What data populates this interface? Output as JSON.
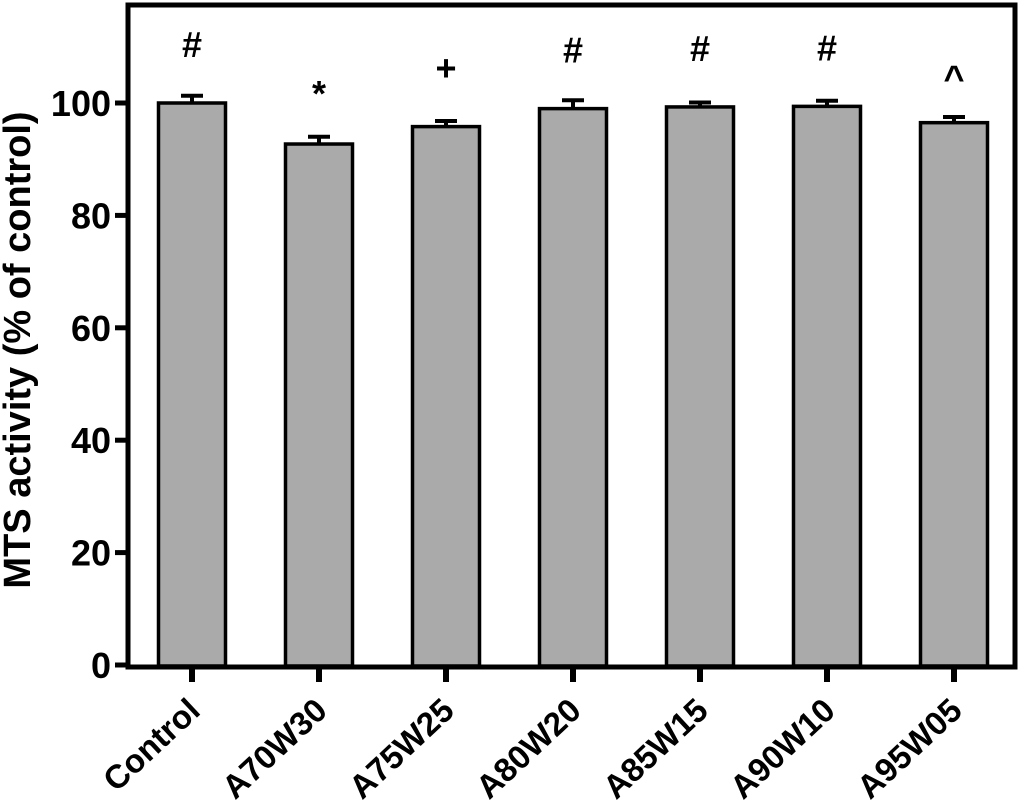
{
  "figure": {
    "background": "#ffffff",
    "bar_fill": "#aaaaaa",
    "bar_stroke": "#000000",
    "axis_color": "#000000"
  },
  "chart_data": {
    "type": "bar",
    "title": "",
    "xlabel": "",
    "ylabel": "MTS activity (% of control)",
    "ylim": [
      0,
      117
    ],
    "yticks": [
      0,
      20,
      40,
      60,
      80,
      100
    ],
    "categories": [
      "Control",
      "A70W30",
      "A75W25",
      "A80W20",
      "A85W15",
      "A90W10",
      "A95W05"
    ],
    "values": [
      100.0,
      92.7,
      95.8,
      99.0,
      99.3,
      99.4,
      96.5
    ],
    "errors": [
      1.3,
      1.3,
      1.0,
      1.5,
      0.8,
      1.0,
      1.0
    ],
    "annotations": [
      "#",
      "*",
      "+",
      "#",
      "#",
      "#",
      "^"
    ],
    "grid": false,
    "legend": null,
    "error_bars": "upper only"
  }
}
